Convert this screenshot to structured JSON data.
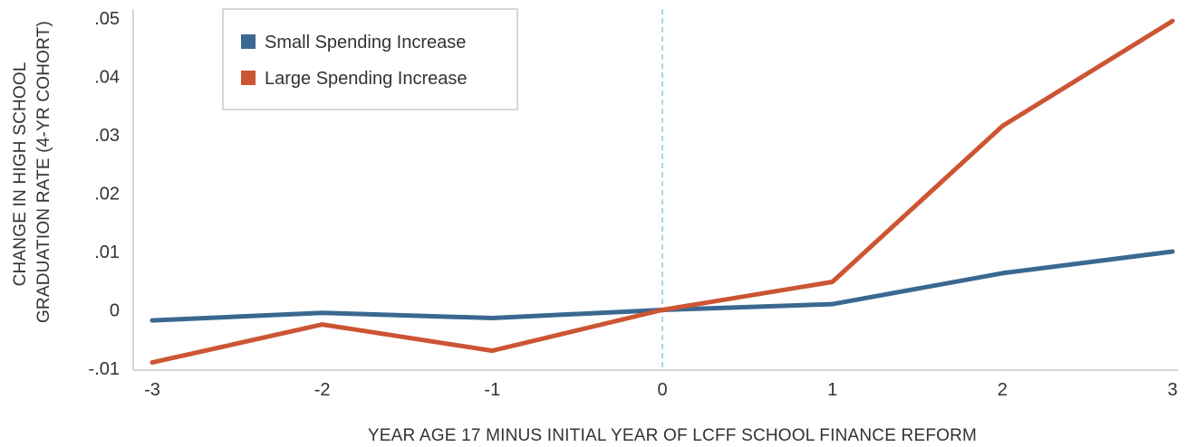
{
  "chart_data": {
    "type": "line",
    "x": [
      -3,
      -2,
      -1,
      0,
      1,
      2,
      3
    ],
    "x_tick_labels": [
      "-3",
      "-2",
      "-1",
      "0",
      "1",
      "2",
      "3"
    ],
    "y_tick_values": [
      -0.01,
      0,
      0.01,
      0.02,
      0.03,
      0.04,
      0.05
    ],
    "y_tick_labels": [
      "-.01",
      "0",
      ".01",
      ".02",
      ".03",
      ".04",
      ".05"
    ],
    "xlim": [
      -3,
      3
    ],
    "ylim": [
      -0.01,
      0.05
    ],
    "xlabel": "YEAR AGE 17 MINUS INITIAL YEAR OF LCFF SCHOOL FINANCE REFORM",
    "ylabel_lines": [
      "CHANGE IN HIGH SCHOOL",
      "GRADUATION RATE (4-YR COHORT)"
    ],
    "reference_line_x": 0,
    "grid": false,
    "legend_position": "top-left",
    "series": [
      {
        "name": "Small Spending Increase",
        "color": "#3a6891",
        "values": [
          -0.0018,
          -0.0005,
          -0.0014,
          0.0,
          0.001,
          0.0063,
          0.01
        ]
      },
      {
        "name": "Large Spending Increase",
        "color": "#cc5533",
        "values": [
          -0.009,
          -0.0025,
          -0.007,
          0.0,
          0.0048,
          0.0315,
          0.0495
        ]
      }
    ]
  }
}
